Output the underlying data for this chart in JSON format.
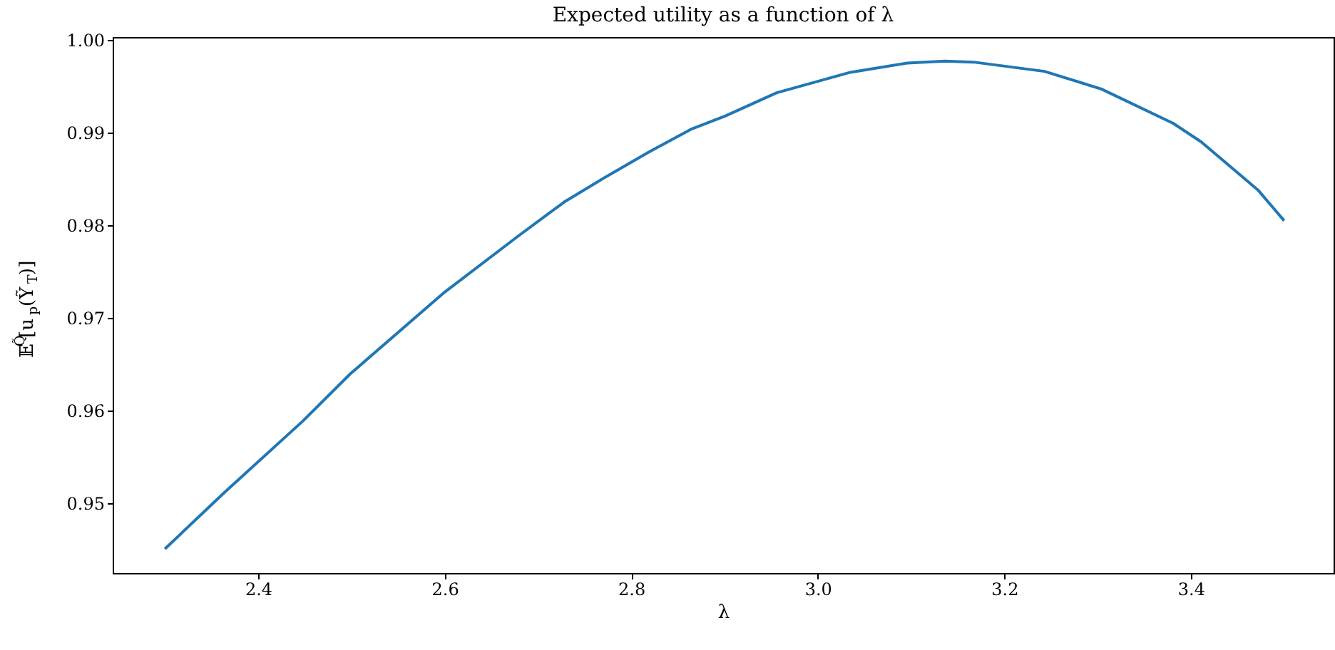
{
  "chart_data": {
    "type": "line",
    "title": "Expected utility as a function of λ",
    "xlabel": "λ",
    "ylabel": "𝔼$^{Q̃}$[u$_{p}$(Ỹ$_{T}$)]",
    "x": [
      2.3,
      2.364,
      2.448,
      2.499,
      2.6,
      2.677,
      2.728,
      2.774,
      2.819,
      2.865,
      2.901,
      2.956,
      3.035,
      3.096,
      3.136,
      3.167,
      3.243,
      3.304,
      3.381,
      3.411,
      3.472,
      3.5
    ],
    "series": [
      {
        "color": "#1f77b4",
        "values": [
          0.9451,
          0.9512,
          0.9589,
          0.964,
          0.9728,
          0.9787,
          0.9825,
          0.9853,
          0.9879,
          0.9904,
          0.9918,
          0.9943,
          0.9965,
          0.9975,
          0.9977,
          0.9976,
          0.9966,
          0.9947,
          0.991,
          0.989,
          0.9838,
          0.9805
        ]
      }
    ],
    "xlim": [
      2.244,
      3.553
    ],
    "ylim": [
      0.9425,
      1.0003
    ],
    "xticks": [
      2.4,
      2.6,
      2.8,
      {
        "value": 3.0,
        "label": "3.0"
      },
      3.2,
      3.4
    ],
    "yticks": [
      0.95,
      0.96,
      0.97,
      0.98,
      0.99,
      {
        "value": 1.0,
        "label": "1.00"
      }
    ],
    "marker": "none",
    "line_style": "solid"
  }
}
